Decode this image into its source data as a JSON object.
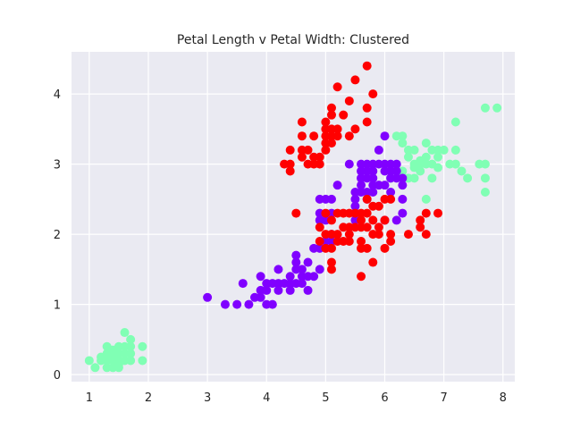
{
  "chart_data": {
    "type": "scatter",
    "title": "Petal Length v Petal Width: Clustered",
    "xlabel": "",
    "ylabel": "",
    "xlim": [
      0.7,
      8.2
    ],
    "ylim": [
      -0.1,
      4.6
    ],
    "xticks": [
      1,
      2,
      3,
      4,
      5,
      6,
      7,
      8
    ],
    "yticks": [
      0,
      1,
      2,
      3,
      4
    ],
    "grid": true,
    "legend": "none",
    "style": {
      "background": "#eaeaf2",
      "grid_color": "#ffffff"
    },
    "series": [
      {
        "color": "#80ffb4",
        "points": [
          [
            1.0,
            0.2
          ],
          [
            1.1,
            0.1
          ],
          [
            1.2,
            0.2
          ],
          [
            1.2,
            0.25
          ],
          [
            1.3,
            0.3
          ],
          [
            1.3,
            0.2
          ],
          [
            1.3,
            0.4
          ],
          [
            1.3,
            0.1
          ],
          [
            1.4,
            0.2
          ],
          [
            1.4,
            0.1
          ],
          [
            1.4,
            0.3
          ],
          [
            1.4,
            0.35
          ],
          [
            1.5,
            0.2
          ],
          [
            1.5,
            0.1
          ],
          [
            1.5,
            0.4
          ],
          [
            1.5,
            0.3
          ],
          [
            1.6,
            0.2
          ],
          [
            1.6,
            0.3
          ],
          [
            1.6,
            0.4
          ],
          [
            1.6,
            0.6
          ],
          [
            1.7,
            0.3
          ],
          [
            1.7,
            0.5
          ],
          [
            1.7,
            0.2
          ],
          [
            1.7,
            0.4
          ],
          [
            1.9,
            0.2
          ],
          [
            1.9,
            0.4
          ],
          [
            1.5,
            0.15
          ],
          [
            1.4,
            0.25
          ],
          [
            6.1,
            2.8
          ],
          [
            6.2,
            3.4
          ],
          [
            6.3,
            3.4
          ],
          [
            6.3,
            3.3
          ],
          [
            6.3,
            2.9
          ],
          [
            6.4,
            3.2
          ],
          [
            6.4,
            2.8
          ],
          [
            6.4,
            3.1
          ],
          [
            6.5,
            3.0
          ],
          [
            6.5,
            3.2
          ],
          [
            6.5,
            2.8
          ],
          [
            6.6,
            3.0
          ],
          [
            6.6,
            2.9
          ],
          [
            6.7,
            3.3
          ],
          [
            6.7,
            3.1
          ],
          [
            6.7,
            3.0
          ],
          [
            6.7,
            2.5
          ],
          [
            6.8,
            3.2
          ],
          [
            6.8,
            2.8
          ],
          [
            6.8,
            3.0
          ],
          [
            6.9,
            3.1
          ],
          [
            6.9,
            3.2
          ],
          [
            7.0,
            3.2
          ],
          [
            7.1,
            3.0
          ],
          [
            7.2,
            3.6
          ],
          [
            7.2,
            3.2
          ],
          [
            7.2,
            3.0
          ],
          [
            7.3,
            2.9
          ],
          [
            7.4,
            2.8
          ],
          [
            7.6,
            3.0
          ],
          [
            7.7,
            3.8
          ],
          [
            7.7,
            3.0
          ],
          [
            7.7,
            2.8
          ],
          [
            7.7,
            2.6
          ],
          [
            7.9,
            3.8
          ],
          [
            6.6,
            3.05
          ],
          [
            6.9,
            2.95
          ],
          [
            6.5,
            2.95
          ]
        ]
      },
      {
        "color": "#8000ff",
        "points": [
          [
            3.0,
            1.1
          ],
          [
            3.3,
            1.0
          ],
          [
            3.5,
            1.0
          ],
          [
            3.6,
            1.3
          ],
          [
            3.7,
            1.0
          ],
          [
            3.8,
            1.1
          ],
          [
            3.9,
            1.1
          ],
          [
            3.9,
            1.2
          ],
          [
            3.9,
            1.4
          ],
          [
            4.0,
            1.0
          ],
          [
            4.0,
            1.2
          ],
          [
            4.0,
            1.3
          ],
          [
            4.1,
            1.0
          ],
          [
            4.1,
            1.3
          ],
          [
            4.2,
            1.2
          ],
          [
            4.2,
            1.3
          ],
          [
            4.2,
            1.5
          ],
          [
            4.3,
            1.3
          ],
          [
            4.4,
            1.2
          ],
          [
            4.4,
            1.3
          ],
          [
            4.4,
            1.4
          ],
          [
            4.5,
            1.3
          ],
          [
            4.5,
            1.5
          ],
          [
            4.5,
            1.6
          ],
          [
            4.5,
            1.7
          ],
          [
            4.6,
            1.3
          ],
          [
            4.6,
            1.4
          ],
          [
            4.6,
            1.5
          ],
          [
            4.7,
            1.2
          ],
          [
            4.7,
            1.4
          ],
          [
            4.7,
            1.6
          ],
          [
            4.8,
            1.4
          ],
          [
            4.8,
            1.8
          ],
          [
            4.9,
            1.5
          ],
          [
            4.9,
            1.8
          ],
          [
            5.0,
            1.9
          ],
          [
            5.0,
            2.2
          ],
          [
            5.0,
            2.5
          ],
          [
            5.1,
            2.0
          ],
          [
            5.1,
            1.9
          ],
          [
            4.9,
            2.5
          ],
          [
            4.9,
            2.3
          ],
          [
            4.9,
            2.2
          ],
          [
            5.1,
            2.3
          ],
          [
            5.1,
            2.5
          ],
          [
            5.2,
            2.7
          ],
          [
            5.4,
            3.0
          ],
          [
            5.5,
            2.6
          ],
          [
            5.5,
            2.4
          ],
          [
            5.5,
            2.5
          ],
          [
            5.6,
            2.6
          ],
          [
            5.6,
            2.8
          ],
          [
            5.6,
            3.0
          ],
          [
            5.6,
            2.9
          ],
          [
            5.6,
            2.7
          ],
          [
            5.7,
            2.8
          ],
          [
            5.7,
            3.0
          ],
          [
            5.7,
            2.9
          ],
          [
            5.7,
            2.6
          ],
          [
            5.7,
            2.5
          ],
          [
            5.8,
            2.7
          ],
          [
            5.8,
            2.8
          ],
          [
            5.8,
            2.6
          ],
          [
            5.8,
            2.9
          ],
          [
            5.8,
            3.0
          ],
          [
            5.9,
            3.0
          ],
          [
            5.9,
            2.7
          ],
          [
            5.9,
            3.2
          ],
          [
            6.0,
            3.0
          ],
          [
            6.0,
            3.4
          ],
          [
            6.0,
            2.9
          ],
          [
            6.0,
            2.7
          ],
          [
            6.0,
            2.2
          ],
          [
            6.1,
            2.9
          ],
          [
            6.1,
            3.0
          ],
          [
            6.1,
            2.8
          ],
          [
            6.2,
            2.9
          ],
          [
            6.2,
            2.2
          ],
          [
            6.2,
            3.0
          ],
          [
            6.2,
            2.8
          ],
          [
            6.3,
            2.7
          ],
          [
            6.3,
            2.3
          ],
          [
            6.3,
            2.5
          ],
          [
            6.3,
            2.8
          ],
          [
            6.1,
            2.6
          ],
          [
            5.5,
            2.2
          ]
        ]
      },
      {
        "color": "#ff0000",
        "points": [
          [
            4.3,
            3.0
          ],
          [
            4.4,
            3.0
          ],
          [
            4.4,
            3.2
          ],
          [
            4.4,
            2.9
          ],
          [
            4.5,
            2.3
          ],
          [
            4.6,
            3.4
          ],
          [
            4.6,
            3.6
          ],
          [
            4.6,
            3.2
          ],
          [
            4.6,
            3.1
          ],
          [
            4.7,
            3.2
          ],
          [
            4.7,
            3.0
          ],
          [
            4.8,
            3.0
          ],
          [
            4.8,
            3.1
          ],
          [
            4.8,
            3.4
          ],
          [
            4.9,
            3.0
          ],
          [
            4.9,
            3.1
          ],
          [
            5.0,
            3.3
          ],
          [
            5.0,
            3.6
          ],
          [
            5.0,
            3.4
          ],
          [
            5.0,
            3.5
          ],
          [
            5.0,
            3.2
          ],
          [
            5.1,
            3.5
          ],
          [
            5.1,
            3.8
          ],
          [
            5.1,
            3.3
          ],
          [
            5.1,
            3.7
          ],
          [
            5.1,
            3.4
          ],
          [
            5.2,
            3.5
          ],
          [
            5.2,
            4.1
          ],
          [
            5.2,
            3.4
          ],
          [
            5.3,
            3.7
          ],
          [
            5.4,
            3.9
          ],
          [
            5.4,
            3.4
          ],
          [
            5.5,
            3.5
          ],
          [
            5.5,
            4.2
          ],
          [
            5.7,
            4.4
          ],
          [
            5.7,
            3.8
          ],
          [
            5.8,
            4.0
          ],
          [
            5.7,
            3.6
          ],
          [
            4.9,
            2.1
          ],
          [
            4.9,
            1.9
          ],
          [
            5.0,
            2.0
          ],
          [
            5.0,
            2.3
          ],
          [
            5.0,
            1.8
          ],
          [
            5.1,
            2.0
          ],
          [
            5.1,
            1.6
          ],
          [
            5.1,
            1.5
          ],
          [
            5.1,
            1.8
          ],
          [
            5.2,
            2.3
          ],
          [
            5.2,
            2.0
          ],
          [
            5.2,
            1.9
          ],
          [
            5.3,
            2.3
          ],
          [
            5.3,
            1.9
          ],
          [
            5.4,
            2.3
          ],
          [
            5.4,
            2.1
          ],
          [
            5.4,
            2.0
          ],
          [
            5.5,
            2.3
          ],
          [
            5.5,
            2.1
          ],
          [
            5.6,
            2.3
          ],
          [
            5.6,
            2.1
          ],
          [
            5.6,
            2.2
          ],
          [
            5.6,
            1.8
          ],
          [
            5.6,
            1.4
          ],
          [
            5.7,
            2.1
          ],
          [
            5.7,
            1.8
          ],
          [
            5.7,
            2.5
          ],
          [
            5.8,
            2.2
          ],
          [
            5.8,
            2.0
          ],
          [
            5.8,
            2.4
          ],
          [
            5.9,
            2.1
          ],
          [
            5.9,
            2.0
          ],
          [
            5.9,
            2.4
          ],
          [
            6.0,
            2.2
          ],
          [
            6.0,
            1.8
          ],
          [
            6.0,
            2.5
          ],
          [
            6.1,
            2.5
          ],
          [
            6.1,
            1.9
          ],
          [
            6.1,
            2.0
          ],
          [
            5.8,
            1.6
          ],
          [
            5.6,
            1.9
          ],
          [
            6.4,
            2.0
          ],
          [
            6.6,
            2.1
          ],
          [
            6.6,
            2.2
          ],
          [
            6.7,
            2.0
          ],
          [
            6.7,
            2.3
          ],
          [
            6.9,
            2.3
          ],
          [
            5.3,
            2.1
          ],
          [
            5.7,
            2.3
          ],
          [
            5.4,
            1.9
          ],
          [
            5.1,
            2.2
          ]
        ]
      }
    ]
  }
}
